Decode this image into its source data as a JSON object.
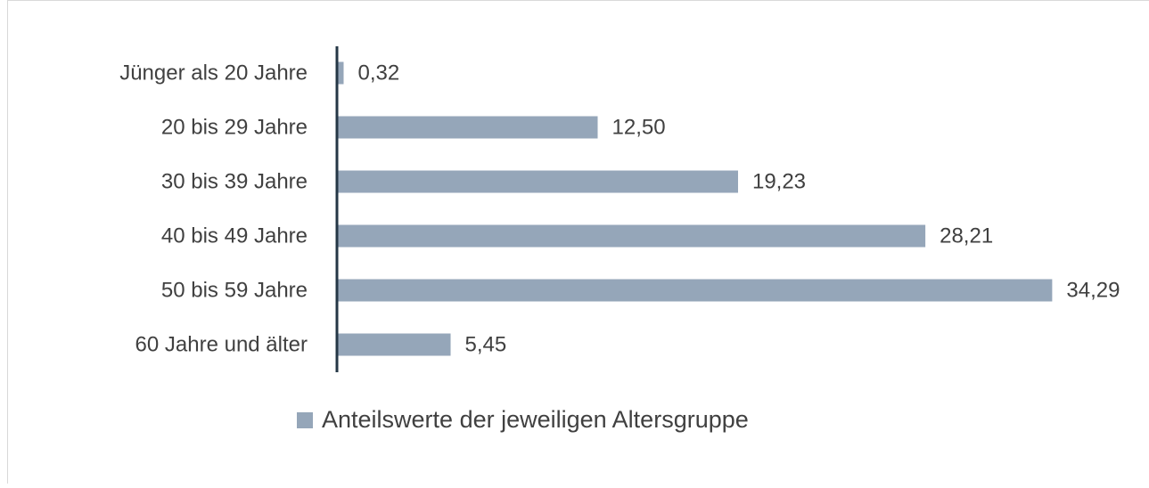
{
  "chart_data": {
    "type": "barh",
    "categories": [
      "Jünger als 20 Jahre",
      "20 bis 29 Jahre",
      "30 bis 39 Jahre",
      "40 bis 49 Jahre",
      "50 bis 59 Jahre",
      "60 Jahre und älter"
    ],
    "series": [
      {
        "name": "Anteilswerte der jeweiligen Altersgruppe",
        "color": "#95a6b9",
        "values": [
          0.32,
          12.5,
          19.23,
          28.21,
          34.29,
          5.45
        ],
        "value_labels": [
          "0,32",
          "12,50",
          "19,23",
          "28,21",
          "34,29",
          "5,45"
        ]
      }
    ],
    "xlim": [
      0,
      35
    ],
    "legend": "bottom"
  }
}
